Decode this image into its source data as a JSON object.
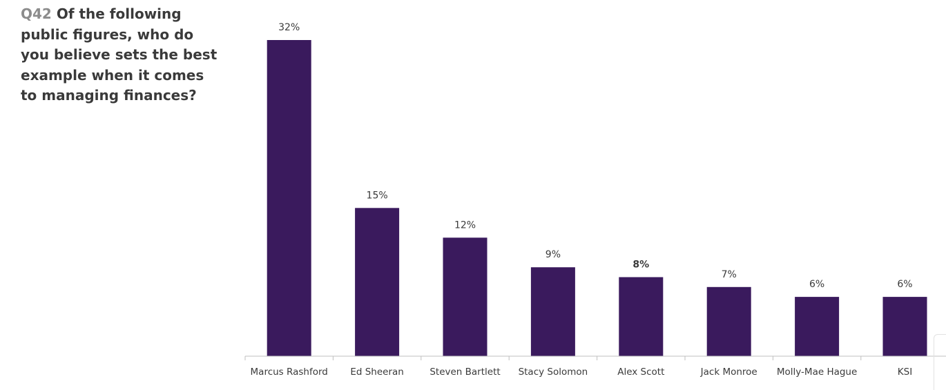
{
  "question": {
    "number": "Q42",
    "text": "Of the following public figures, who do you believe sets the best example when it comes to managing finances?"
  },
  "colors": {
    "bar": "#3a1a5d",
    "axis": "#bfbfbf",
    "text": "#3a3a3a",
    "question_number": "#8c8c8c"
  },
  "chart_data": {
    "type": "bar",
    "categories": [
      "Marcus Rashford",
      "Ed Sheeran",
      "Steven Bartlett",
      "Stacy Solomon",
      "Alex Scott",
      "Jack Monroe",
      "Molly-Mae Hague",
      "KSI"
    ],
    "values": [
      32,
      15,
      12,
      9,
      8,
      7,
      6,
      6
    ],
    "data_labels": [
      "32%",
      "15%",
      "12%",
      "9%",
      "8%",
      "7%",
      "6%",
      "6%"
    ],
    "bold_labels": [
      false,
      false,
      false,
      false,
      true,
      false,
      false,
      false
    ],
    "ylim": [
      0,
      32
    ],
    "grid": false,
    "legend": "none"
  }
}
